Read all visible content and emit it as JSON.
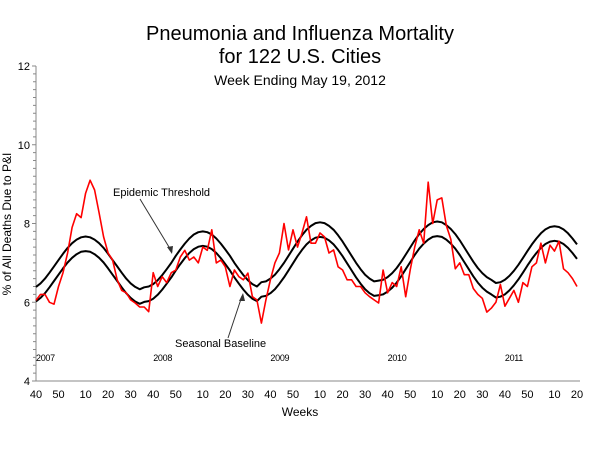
{
  "chart_data": {
    "type": "line",
    "title": "Pneumonia and Influenza Mortality",
    "title_line2": "for 122 U.S. Cities",
    "subtitle": "Week Ending   May 19, 2012",
    "xlabel": "Weeks",
    "ylabel": "% of All Deaths Due to P&I",
    "ylim": [
      4,
      12
    ],
    "y_ticks": [
      4,
      6,
      8,
      10,
      12
    ],
    "grid": false,
    "x": [
      "2007-40",
      "2007-42",
      "2007-44",
      "2007-46",
      "2007-48",
      "2007-50",
      "2007-52",
      "2008-02",
      "2008-04",
      "2008-06",
      "2008-08",
      "2008-10",
      "2008-12",
      "2008-14",
      "2008-16",
      "2008-18",
      "2008-20",
      "2008-22",
      "2008-24",
      "2008-26",
      "2008-28",
      "2008-30",
      "2008-32",
      "2008-34",
      "2008-36",
      "2008-38",
      "2008-40",
      "2008-42",
      "2008-44",
      "2008-46",
      "2008-48",
      "2008-50",
      "2008-52",
      "2009-02",
      "2009-04",
      "2009-06",
      "2009-08",
      "2009-10",
      "2009-12",
      "2009-14",
      "2009-16",
      "2009-18",
      "2009-20",
      "2009-22",
      "2009-24",
      "2009-26",
      "2009-28",
      "2009-30",
      "2009-32",
      "2009-34",
      "2009-36",
      "2009-38",
      "2009-40",
      "2009-42",
      "2009-44",
      "2009-46",
      "2009-48",
      "2009-50",
      "2009-52",
      "2010-02",
      "2010-04",
      "2010-06",
      "2010-08",
      "2010-10",
      "2010-12",
      "2010-14",
      "2010-16",
      "2010-18",
      "2010-20",
      "2010-22",
      "2010-24",
      "2010-26",
      "2010-28",
      "2010-30",
      "2010-32",
      "2010-34",
      "2010-36",
      "2010-38",
      "2010-40",
      "2010-42",
      "2010-44",
      "2010-46",
      "2010-48",
      "2010-50",
      "2010-52",
      "2011-02",
      "2011-04",
      "2011-06",
      "2011-08",
      "2011-10",
      "2011-12",
      "2011-14",
      "2011-16",
      "2011-18",
      "2011-20",
      "2011-22",
      "2011-24",
      "2011-26",
      "2011-28",
      "2011-30",
      "2011-32",
      "2011-34",
      "2011-36",
      "2011-38",
      "2011-40",
      "2011-42",
      "2011-44",
      "2011-46",
      "2011-48",
      "2011-50",
      "2011-52",
      "2012-02",
      "2012-04",
      "2012-06",
      "2012-08",
      "2012-10",
      "2012-12",
      "2012-14",
      "2012-16",
      "2012-18",
      "2012-20"
    ],
    "x_ticks": [
      {
        "label": "40",
        "x": "2007-40"
      },
      {
        "label": "50",
        "x": "2007-50"
      },
      {
        "label": "10",
        "x": "2008-10"
      },
      {
        "label": "20",
        "x": "2008-20"
      },
      {
        "label": "30",
        "x": "2008-30"
      },
      {
        "label": "40",
        "x": "2008-40"
      },
      {
        "label": "50",
        "x": "2008-50"
      },
      {
        "label": "10",
        "x": "2009-10"
      },
      {
        "label": "20",
        "x": "2009-20"
      },
      {
        "label": "30",
        "x": "2009-30"
      },
      {
        "label": "40",
        "x": "2009-40"
      },
      {
        "label": "50",
        "x": "2009-50"
      },
      {
        "label": "10",
        "x": "2010-10"
      },
      {
        "label": "20",
        "x": "2010-20"
      },
      {
        "label": "30",
        "x": "2010-30"
      },
      {
        "label": "40",
        "x": "2010-40"
      },
      {
        "label": "50",
        "x": "2010-50"
      },
      {
        "label": "10",
        "x": "2011-10"
      },
      {
        "label": "20",
        "x": "2011-20"
      },
      {
        "label": "30",
        "x": "2011-30"
      },
      {
        "label": "40",
        "x": "2011-40"
      },
      {
        "label": "50",
        "x": "2011-50"
      },
      {
        "label": "10",
        "x": "2012-10"
      },
      {
        "label": "20",
        "x": "2012-20"
      }
    ],
    "year_labels": [
      {
        "label": "2007",
        "x": "2007-40"
      },
      {
        "label": "2008",
        "x": "2008-40"
      },
      {
        "label": "2009",
        "x": "2009-40"
      },
      {
        "label": "2010",
        "x": "2010-40"
      },
      {
        "label": "2011",
        "x": "2011-40"
      }
    ],
    "series": [
      {
        "name": "P&I Mortality",
        "color": "#ff0000",
        "values": [
          6.05,
          6.2,
          6.2,
          6.0,
          5.95,
          6.4,
          6.75,
          7.25,
          7.9,
          8.25,
          8.15,
          8.77,
          9.1,
          8.85,
          8.27,
          7.66,
          7.25,
          7.07,
          6.57,
          6.3,
          6.24,
          6.06,
          5.98,
          5.88,
          5.88,
          5.76,
          6.75,
          6.4,
          6.65,
          6.5,
          6.75,
          6.82,
          7.15,
          7.32,
          7.07,
          7.15,
          7.0,
          7.4,
          7.32,
          7.84,
          7.0,
          7.07,
          6.9,
          6.4,
          6.82,
          6.65,
          6.57,
          6.74,
          6.14,
          6.06,
          5.47,
          6.06,
          6.57,
          7.0,
          7.25,
          8.0,
          7.33,
          7.84,
          7.4,
          7.76,
          8.17,
          7.5,
          7.5,
          7.76,
          7.66,
          7.25,
          7.33,
          6.9,
          6.82,
          6.57,
          6.57,
          6.4,
          6.4,
          6.24,
          6.14,
          6.06,
          5.98,
          6.82,
          6.24,
          6.5,
          6.4,
          6.9,
          6.14,
          6.82,
          7.4,
          7.84,
          7.5,
          9.05,
          8.0,
          8.6,
          8.65,
          7.95,
          7.6,
          6.85,
          7.0,
          6.7,
          6.7,
          6.35,
          6.2,
          6.1,
          5.75,
          5.85,
          6.0,
          6.45,
          5.9,
          6.1,
          6.3,
          6.0,
          6.5,
          6.4,
          6.9,
          7.0,
          7.5,
          7.0,
          7.45,
          7.3,
          7.55,
          6.85,
          6.75,
          6.6,
          6.4
        ]
      },
      {
        "name": "Epidemic Threshold",
        "color": "#000000",
        "values": [
          6.39,
          6.48,
          6.6,
          6.75,
          6.91,
          7.07,
          7.23,
          7.38,
          7.5,
          7.59,
          7.65,
          7.67,
          7.65,
          7.59,
          7.5,
          7.38,
          7.23,
          7.07,
          6.91,
          6.75,
          6.6,
          6.48,
          6.39,
          6.33,
          6.38,
          6.4,
          6.46,
          6.56,
          6.69,
          6.84,
          7.0,
          7.18,
          7.34,
          7.49,
          7.62,
          7.72,
          7.78,
          7.8,
          7.78,
          7.72,
          7.62,
          7.49,
          7.34,
          7.18,
          7.0,
          6.84,
          6.69,
          6.56,
          6.46,
          6.4,
          6.51,
          6.53,
          6.6,
          6.7,
          6.84,
          7.0,
          7.18,
          7.36,
          7.54,
          7.7,
          7.84,
          7.94,
          8.01,
          8.03,
          8.01,
          7.94,
          7.84,
          7.7,
          7.54,
          7.36,
          7.18,
          7.0,
          6.84,
          6.7,
          6.6,
          6.53,
          6.55,
          6.57,
          6.64,
          6.74,
          6.87,
          7.03,
          7.21,
          7.39,
          7.57,
          7.73,
          7.86,
          7.96,
          8.03,
          8.05,
          8.03,
          7.96,
          7.86,
          7.73,
          7.57,
          7.39,
          7.21,
          7.03,
          6.87,
          6.74,
          6.64,
          6.57,
          6.49,
          6.51,
          6.57,
          6.67,
          6.8,
          6.95,
          7.12,
          7.3,
          7.47,
          7.62,
          7.75,
          7.85,
          7.91,
          7.93,
          7.91,
          7.85,
          7.75,
          7.62,
          7.47
        ]
      },
      {
        "name": "Seasonal Baseline",
        "color": "#000000",
        "values": [
          6.02,
          6.11,
          6.23,
          6.38,
          6.54,
          6.7,
          6.86,
          7.01,
          7.13,
          7.22,
          7.28,
          7.3,
          7.28,
          7.22,
          7.13,
          7.01,
          6.86,
          6.7,
          6.54,
          6.38,
          6.23,
          6.11,
          6.02,
          5.96,
          6.01,
          6.03,
          6.09,
          6.19,
          6.32,
          6.47,
          6.63,
          6.81,
          6.97,
          7.12,
          7.25,
          7.35,
          7.41,
          7.43,
          7.41,
          7.35,
          7.25,
          7.12,
          6.97,
          6.81,
          6.63,
          6.47,
          6.32,
          6.19,
          6.09,
          6.03,
          6.14,
          6.16,
          6.23,
          6.33,
          6.47,
          6.63,
          6.81,
          6.99,
          7.17,
          7.33,
          7.47,
          7.57,
          7.64,
          7.66,
          7.64,
          7.57,
          7.47,
          7.33,
          7.17,
          6.99,
          6.81,
          6.63,
          6.47,
          6.33,
          6.23,
          6.16,
          6.18,
          6.2,
          6.27,
          6.37,
          6.5,
          6.66,
          6.84,
          7.02,
          7.2,
          7.36,
          7.49,
          7.59,
          7.66,
          7.68,
          7.66,
          7.59,
          7.49,
          7.36,
          7.2,
          7.02,
          6.84,
          6.66,
          6.5,
          6.37,
          6.27,
          6.2,
          6.12,
          6.14,
          6.2,
          6.3,
          6.43,
          6.58,
          6.75,
          6.93,
          7.1,
          7.25,
          7.38,
          7.48,
          7.54,
          7.56,
          7.54,
          7.48,
          7.38,
          7.25,
          7.1
        ]
      }
    ],
    "annotations": [
      {
        "text": "Epidemic Threshold",
        "points_to": "Epidemic Threshold",
        "x": "2008-42",
        "y": 7.6
      },
      {
        "text": "Seasonal Baseline",
        "points_to": "Seasonal Baseline",
        "x": "2009-36",
        "y": 6.5
      }
    ]
  }
}
